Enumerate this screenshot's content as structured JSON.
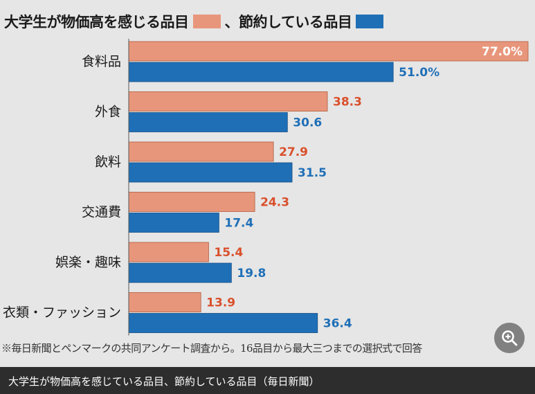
{
  "chart_data": {
    "type": "bar",
    "orientation": "horizontal",
    "title_part1": "大学生が物価高を感じる品目",
    "title_part2": "、節約している品目",
    "categories": [
      "食料品",
      "外食",
      "飲料",
      "交通費",
      "娯楽・趣味",
      "衣類・ファッション"
    ],
    "series": [
      {
        "name": "大学生が物価高を感じる品目",
        "color": "#e8967b",
        "label_color": "#d9502c",
        "values": [
          77.0,
          38.3,
          27.9,
          24.3,
          15.4,
          13.9
        ],
        "labels": [
          "77.0%",
          "38.3",
          "27.9",
          "24.3",
          "15.4",
          "13.9"
        ]
      },
      {
        "name": "節約している品目",
        "color": "#1f6fb7",
        "label_color": "#1f6fb7",
        "values": [
          51.0,
          30.6,
          31.5,
          17.4,
          19.8,
          36.4
        ],
        "labels": [
          "51.0%",
          "30.6",
          "31.5",
          "17.4",
          "19.8",
          "36.4"
        ]
      }
    ],
    "xlim": [
      0,
      77
    ],
    "grid": false,
    "legend": "top (inline with title)",
    "footnote": "※毎日新聞とペンマークの共同アンケート調査から。16品目から最大三つまでの選択式で回答"
  },
  "caption": "大学生が物価高を感じている品目、節約している品目（毎日新聞）",
  "zoom_icon": "zoom-in-icon"
}
